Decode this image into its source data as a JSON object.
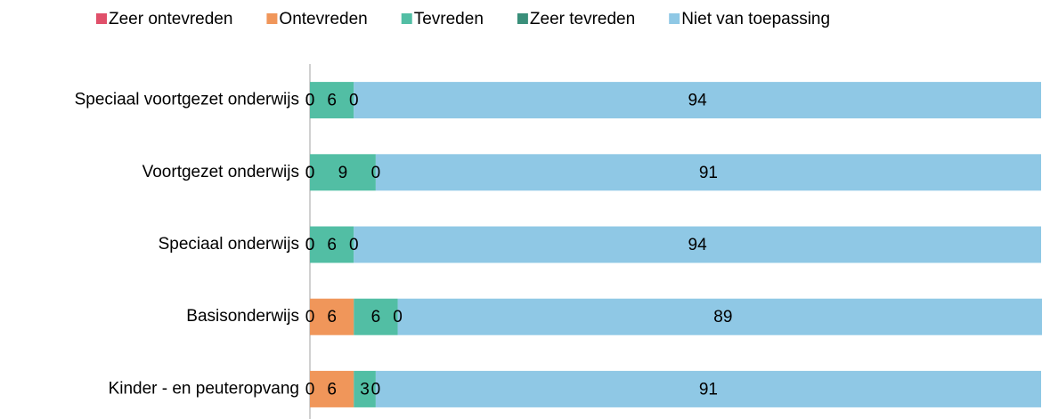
{
  "chart_data": {
    "type": "stacked_barh",
    "categories": [
      "Speciaal voortgezet onderwijs",
      "Voortgezet onderwijs",
      "Speciaal onderwijs",
      "Basisonderwijs",
      "Kinder - en peuteropvang"
    ],
    "series": [
      {
        "name": "Zeer ontevreden",
        "color": "#e0506a",
        "values": [
          0,
          0,
          0,
          0,
          0
        ]
      },
      {
        "name": "Ontevreden",
        "color": "#f0965a",
        "values": [
          0,
          0,
          0,
          6,
          6
        ]
      },
      {
        "name": "Tevreden",
        "color": "#52bea4",
        "values": [
          6,
          9,
          6,
          6,
          3
        ]
      },
      {
        "name": "Zeer tevreden",
        "color": "#3a8f7a",
        "values": [
          0,
          0,
          0,
          0,
          0
        ]
      },
      {
        "name": "Niet van toepassing",
        "color": "#8fc8e5",
        "values": [
          94,
          91,
          94,
          89,
          91
        ]
      }
    ],
    "xlim": [
      0,
      100
    ],
    "legend": "top"
  }
}
